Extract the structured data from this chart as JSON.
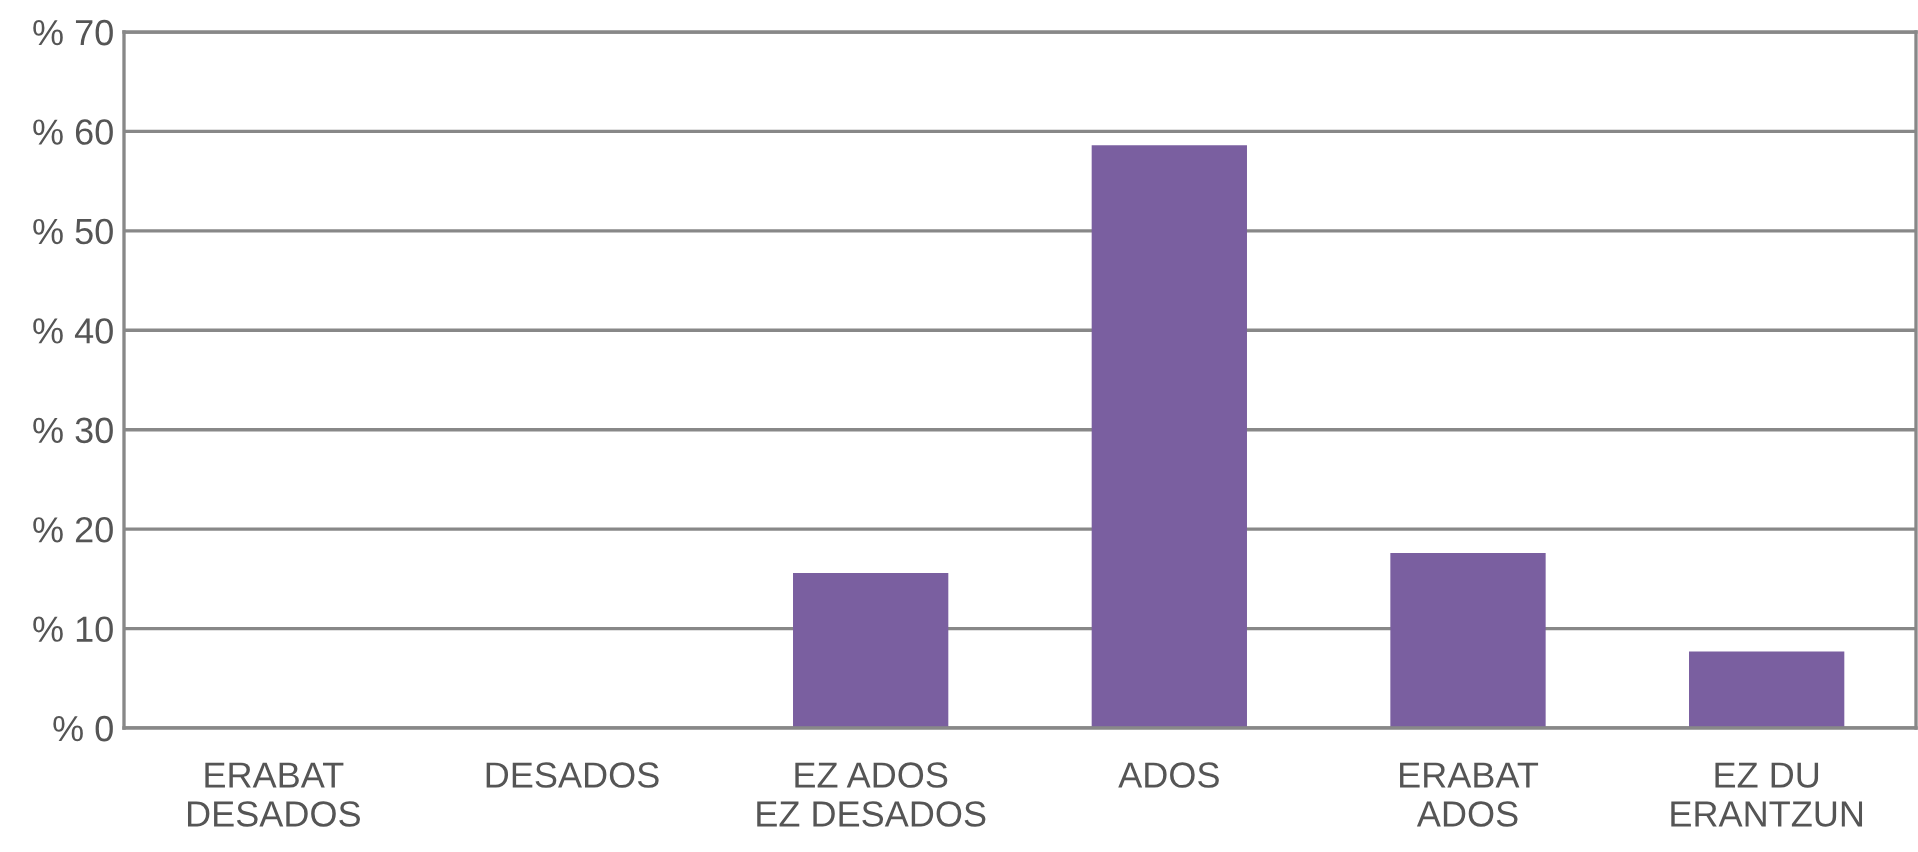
{
  "chart_data": {
    "type": "bar",
    "categories": [
      "ERABAT\nDESADOS",
      "DESADOS",
      "EZ ADOS\nEZ DESADOS",
      "ADOS",
      "ERABAT\nADOS",
      "EZ DU\nERANTZUN"
    ],
    "values": [
      0,
      0,
      15.6,
      58.6,
      17.6,
      7.7
    ],
    "color": "#7a5fa0",
    "ylim": [
      0,
      70
    ],
    "yticks": [
      {
        "value": 0,
        "label": "% 0"
      },
      {
        "value": 10,
        "label": "% 10"
      },
      {
        "value": 20,
        "label": "% 20"
      },
      {
        "value": 30,
        "label": "% 30"
      },
      {
        "value": 40,
        "label": "% 40"
      },
      {
        "value": 50,
        "label": "% 50"
      },
      {
        "value": 60,
        "label": "% 60"
      },
      {
        "value": 70,
        "label": "% 70"
      }
    ],
    "grid": "y",
    "legend": false
  }
}
